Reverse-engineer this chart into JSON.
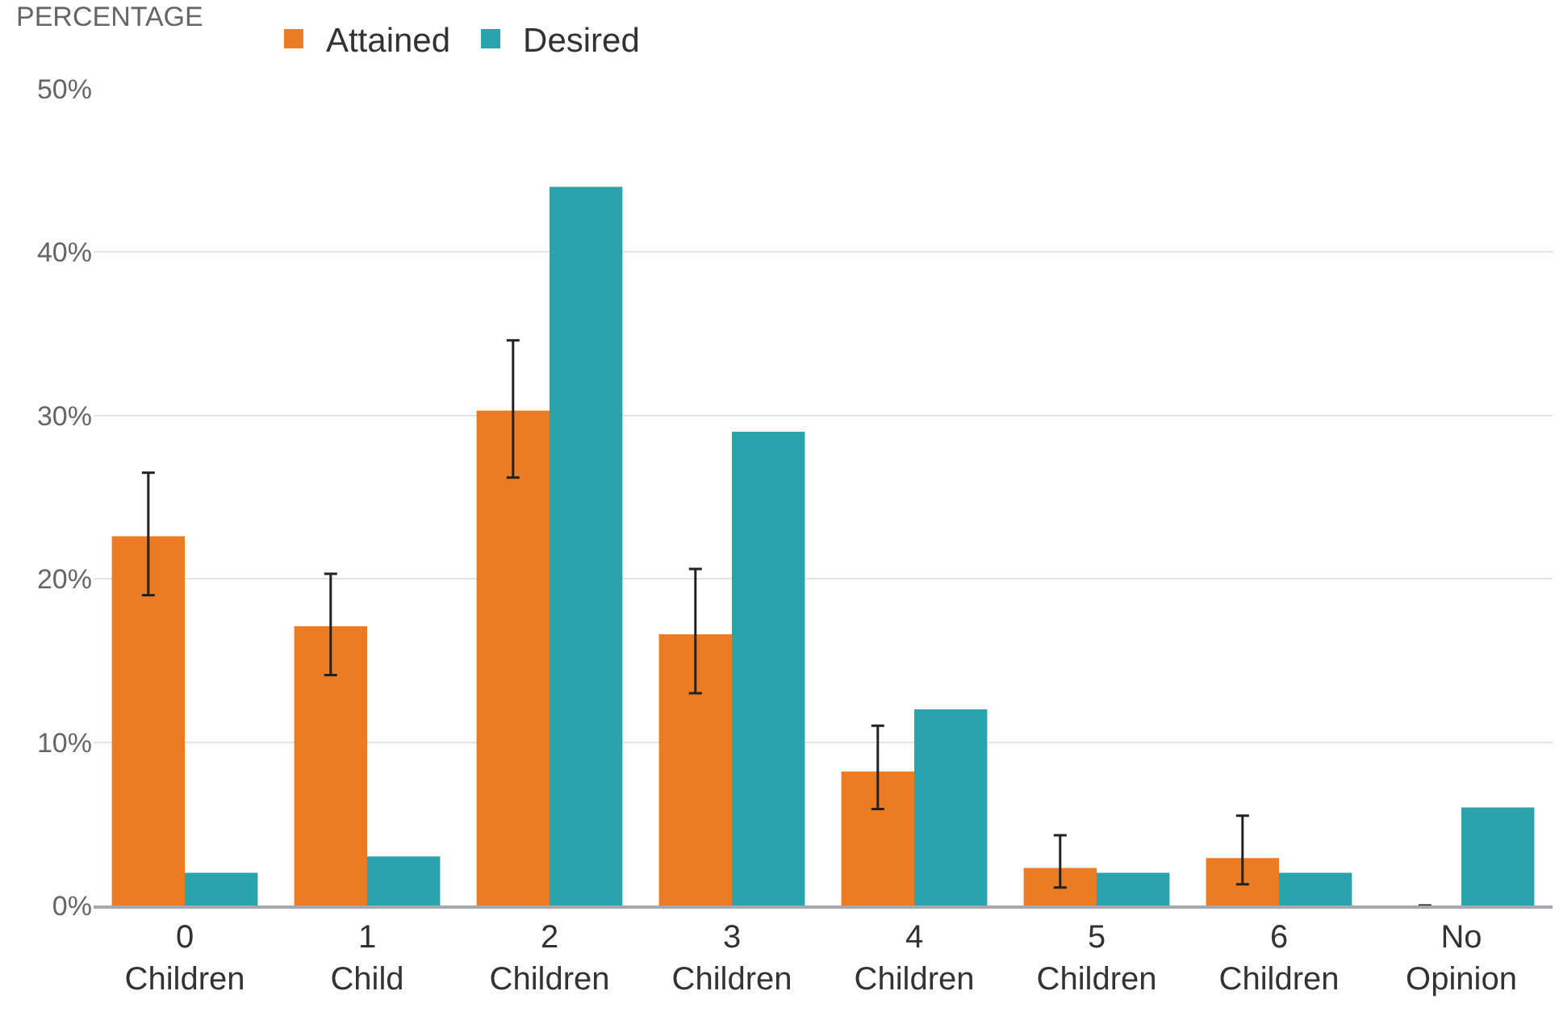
{
  "chart_data": {
    "type": "bar",
    "ylabel": "PERCENTAGE",
    "categories": [
      "0\nChildren",
      "1\nChild",
      "2\nChildren",
      "3\nChildren",
      "4\nChildren",
      "5\nChildren",
      "6\nChildren",
      "No\nOpinion"
    ],
    "series": [
      {
        "name": "Attained",
        "color": "#ec7c24",
        "values": [
          22.6,
          17.1,
          30.3,
          16.6,
          8.2,
          2.3,
          2.9,
          0
        ],
        "errors": [
          [
            19.0,
            26.5
          ],
          [
            14.1,
            20.3
          ],
          [
            26.2,
            34.6
          ],
          [
            13.0,
            20.6
          ],
          [
            5.9,
            11.0
          ],
          [
            1.1,
            4.3
          ],
          [
            1.3,
            5.5
          ],
          null
        ]
      },
      {
        "name": "Desired",
        "color": "#29a4ac",
        "values": [
          2.0,
          3.0,
          44.0,
          29.0,
          12.0,
          2.0,
          2.0,
          6.0
        ]
      }
    ],
    "ylim": [
      0,
      50
    ],
    "yticks": [
      {
        "value": 0,
        "label": "0%"
      },
      {
        "value": 10,
        "label": "10%"
      },
      {
        "value": 20,
        "label": "20%"
      },
      {
        "value": 30,
        "label": "30%"
      },
      {
        "value": 40,
        "label": "40%"
      },
      {
        "value": 50,
        "label": "50%"
      }
    ],
    "grid": "y",
    "legend": "top left"
  }
}
